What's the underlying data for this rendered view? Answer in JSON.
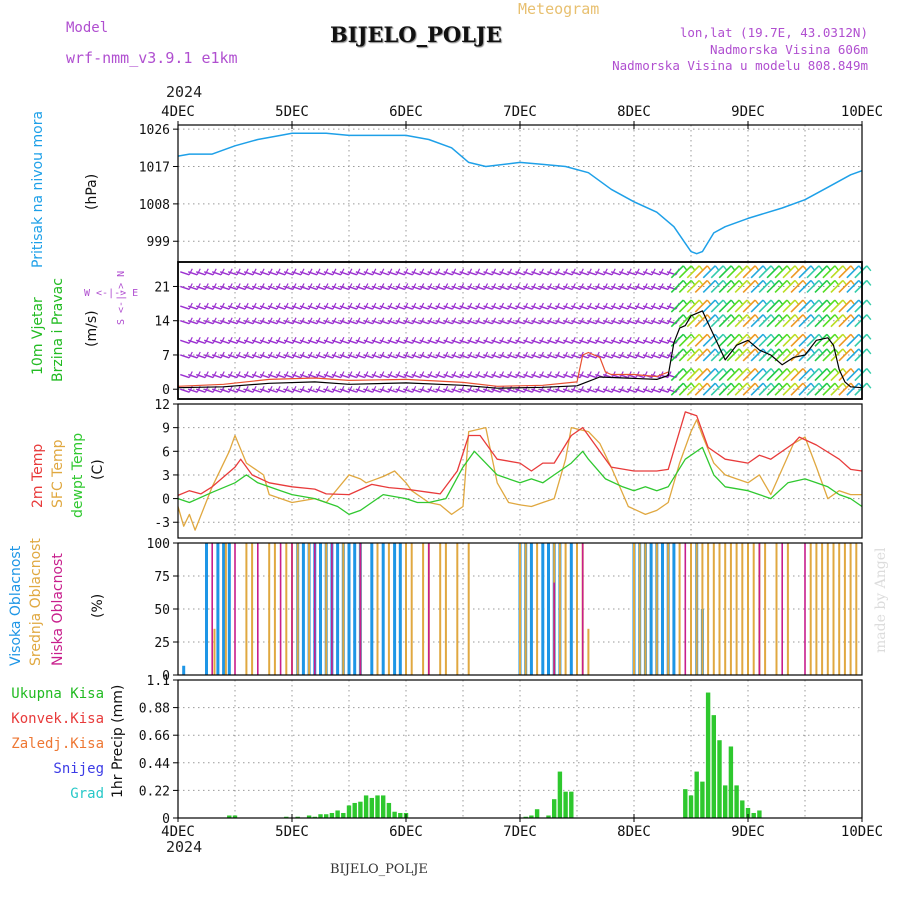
{
  "header": {
    "model_label": "Model",
    "model_name": "wrf-nmm_v3.9.1 e1km",
    "station": "BIJELO_POLJE",
    "meteogram": "Meteogram",
    "lonlat": "lon,lat (19.7E, 43.0312N)",
    "elevation": "Nadmorska Visina 606m",
    "model_elevation": "Nadmorska Visina u modelu 808.849m",
    "top_year": "2024",
    "bottom_year": "2024",
    "bottom_station": "BIJELO_POLJE",
    "watermark": "made by Angel"
  },
  "colors": {
    "pressure": "#1ea0e8",
    "wind_speed": "#000000",
    "wind_barb": "#9b30d0",
    "gust": "#e85030",
    "t2m": "#e83b3b",
    "tsfc": "#e0a840",
    "dewpt": "#30c830",
    "high_cloud": "#1e96e6",
    "mid_cloud": "#e0a840",
    "low_cloud": "#c81e8c",
    "precip": "#2ec82e",
    "snow": "#3c3ce6",
    "hail": "#28c8c8",
    "wind_label": "#22bb22",
    "precip_label_total": "#22bb22",
    "precip_label_conv": "#e83b3b",
    "precip_label_frz": "#ee7733"
  },
  "panels": {
    "pressure": {
      "labels": [
        "Pritisak na nivou mora"
      ],
      "unit": "(hPa)"
    },
    "wind": {
      "labels": [
        "10m Vjetar",
        "Brzina i Pravac"
      ],
      "unit": "(m/s)",
      "compass": "W <-|-> E",
      "compass2": "S <-|-> N"
    },
    "temp": {
      "labels": [
        "2m Temp",
        "SFC Temp",
        "dewpt Temp"
      ],
      "unit": "(C)"
    },
    "cloud": {
      "labels": [
        "Visoka Oblacnost",
        "Srednja Oblacnost",
        "Niska Oblacnost"
      ],
      "unit": "(%)"
    },
    "precip": {
      "labels": [
        "Ukupna Kisa",
        "Konvek.Kisa",
        "Zaledj.Kisa",
        "Snijeg",
        "Grad"
      ],
      "unit": "1hr Precip (mm)"
    }
  },
  "chart_data": [
    {
      "type": "line",
      "name": "pressure",
      "x_ticks": [
        "4DEC",
        "5DEC",
        "6DEC",
        "7DEC",
        "8DEC",
        "9DEC",
        "10DEC"
      ],
      "ylim": [
        994,
        1027
      ],
      "y_ticks": [
        999,
        1008,
        1017,
        1026
      ],
      "grid": true,
      "series": [
        {
          "name": "Pritisak na nivou mora",
          "x": [
            0,
            0.1,
            0.3,
            0.5,
            0.7,
            0.9,
            1.0,
            1.3,
            1.5,
            2.0,
            2.2,
            2.4,
            2.55,
            2.7,
            3.0,
            3.2,
            3.4,
            3.6,
            3.8,
            4.0,
            4.2,
            4.35,
            4.45,
            4.5,
            4.55,
            4.6,
            4.7,
            4.8,
            5.0,
            5.3,
            5.5,
            5.7,
            5.9,
            6.0
          ],
          "y": [
            1019.5,
            1020,
            1020,
            1022,
            1023.5,
            1024.5,
            1025,
            1025,
            1024.5,
            1024.5,
            1023.5,
            1021.5,
            1018,
            1017,
            1018,
            1017.5,
            1017,
            1015.5,
            1011.5,
            1008.5,
            1006,
            1002.5,
            998.5,
            996.5,
            996,
            996.5,
            1001,
            1002.5,
            1004.5,
            1007,
            1009,
            1012,
            1015,
            1016
          ]
        }
      ]
    },
    {
      "type": "line",
      "name": "wind",
      "ylim": [
        -2,
        26
      ],
      "y_ticks": [
        0,
        7,
        14,
        21
      ],
      "grid": true,
      "series": [
        {
          "name": "speed",
          "x": [
            0,
            0.4,
            0.8,
            1.2,
            1.5,
            2.0,
            2.5,
            2.8,
            3.2,
            3.5,
            3.7,
            4.0,
            4.2,
            4.3,
            4.35,
            4.4,
            4.45,
            4.5,
            4.6,
            4.7,
            4.8,
            4.9,
            5.0,
            5.1,
            5.2,
            5.3,
            5.4,
            5.5,
            5.6,
            5.7,
            5.75,
            5.8,
            5.85,
            5.9,
            6.0
          ],
          "y": [
            0.3,
            0.5,
            1.2,
            1.5,
            1.0,
            1.3,
            0.8,
            0.2,
            0.4,
            0.7,
            2.5,
            2.2,
            2.0,
            2.8,
            9.5,
            12.5,
            13.0,
            15.0,
            16.0,
            11.0,
            6.0,
            9.0,
            10.0,
            8.0,
            7.0,
            5.0,
            6.5,
            7.0,
            10.0,
            10.5,
            9.0,
            4.0,
            1.5,
            0.5,
            0.3
          ]
        },
        {
          "name": "gust",
          "x": [
            0,
            0.4,
            0.8,
            1.2,
            1.5,
            2.0,
            2.5,
            2.8,
            3.2,
            3.5,
            3.55,
            3.6,
            3.7,
            3.75,
            3.8,
            4.0,
            4.2,
            4.3
          ],
          "y": [
            0.6,
            1.0,
            2.0,
            2.3,
            1.8,
            2.0,
            1.4,
            0.6,
            0.8,
            1.5,
            7.0,
            7.5,
            6.5,
            3.5,
            3.0,
            3.0,
            2.6,
            3.5
          ]
        }
      ]
    },
    {
      "type": "line",
      "name": "temperature",
      "ylim": [
        -5,
        12
      ],
      "y_ticks": [
        -3,
        0,
        3,
        6,
        9,
        12
      ],
      "grid": true,
      "series": [
        {
          "name": "2m Temp",
          "x": [
            0,
            0.1,
            0.2,
            0.3,
            0.5,
            0.55,
            0.65,
            0.8,
            1.0,
            1.2,
            1.3,
            1.5,
            1.7,
            1.85,
            2.0,
            2.2,
            2.3,
            2.45,
            2.55,
            2.65,
            2.8,
            3.0,
            3.1,
            3.2,
            3.3,
            3.45,
            3.55,
            3.65,
            3.8,
            4.0,
            4.2,
            4.3,
            4.45,
            4.55,
            4.65,
            4.8,
            5.0,
            5.1,
            5.2,
            5.4,
            5.45,
            5.6,
            5.8,
            5.9,
            6.0
          ],
          "y": [
            0.4,
            1.0,
            0.6,
            1.5,
            4.0,
            5.0,
            3.0,
            2.0,
            1.5,
            1.2,
            0.6,
            0.5,
            1.8,
            1.4,
            1.2,
            0.8,
            0.6,
            3.5,
            8.0,
            8.0,
            5.0,
            4.5,
            3.5,
            4.5,
            4.5,
            8.0,
            9.0,
            7.0,
            4.0,
            3.5,
            3.5,
            3.7,
            11.0,
            10.5,
            6.5,
            5.0,
            4.5,
            5.5,
            5.0,
            7.0,
            7.8,
            6.8,
            5.0,
            3.7,
            3.5
          ]
        },
        {
          "name": "SFC Temp",
          "x": [
            0,
            0.05,
            0.1,
            0.15,
            0.3,
            0.45,
            0.5,
            0.6,
            0.75,
            0.8,
            1.0,
            1.2,
            1.3,
            1.5,
            1.6,
            1.65,
            1.8,
            1.9,
            2.0,
            2.05,
            2.2,
            2.3,
            2.4,
            2.5,
            2.55,
            2.7,
            2.8,
            2.9,
            3.0,
            3.1,
            3.2,
            3.3,
            3.4,
            3.45,
            3.6,
            3.7,
            3.8,
            3.95,
            4.1,
            4.2,
            4.3,
            4.4,
            4.5,
            4.55,
            4.6,
            4.7,
            4.8,
            4.9,
            5.0,
            5.1,
            5.2,
            5.4,
            5.5,
            5.6,
            5.7,
            5.8,
            5.9,
            6.0
          ],
          "y": [
            -1.0,
            -3.5,
            -2.0,
            -4.0,
            1.5,
            6.0,
            8.0,
            4.5,
            3.0,
            0.5,
            -0.5,
            0.0,
            -0.5,
            3.0,
            2.5,
            2.0,
            2.8,
            3.5,
            2.0,
            1.0,
            -0.5,
            -0.8,
            -2.0,
            -1.0,
            8.5,
            9.0,
            2.0,
            -0.5,
            -0.8,
            -1.0,
            -0.5,
            0.0,
            5.0,
            9.0,
            8.5,
            7.0,
            4.0,
            -1.0,
            -2.0,
            -1.5,
            -0.5,
            4.5,
            8.5,
            10.0,
            8.0,
            4.5,
            3.0,
            2.5,
            2.0,
            3.0,
            0.5,
            7.0,
            7.8,
            4.0,
            0.0,
            1.0,
            0.5,
            0.5
          ]
        },
        {
          "name": "dewpt Temp",
          "x": [
            0,
            0.1,
            0.3,
            0.5,
            0.6,
            0.7,
            0.9,
            1.0,
            1.2,
            1.4,
            1.5,
            1.6,
            1.7,
            1.8,
            2.0,
            2.1,
            2.2,
            2.35,
            2.5,
            2.6,
            2.8,
            3.0,
            3.1,
            3.2,
            3.3,
            3.45,
            3.55,
            3.6,
            3.75,
            3.9,
            4.0,
            4.1,
            4.2,
            4.3,
            4.45,
            4.6,
            4.7,
            4.8,
            5.0,
            5.1,
            5.2,
            5.35,
            5.5,
            5.6,
            5.7,
            5.8,
            5.9,
            6.0
          ],
          "y": [
            0.0,
            -0.5,
            0.8,
            2.0,
            3.0,
            2.0,
            1.0,
            0.5,
            0.0,
            -1.0,
            -2.0,
            -1.5,
            -0.5,
            0.5,
            0.0,
            -0.5,
            -0.5,
            0.0,
            4.0,
            6.0,
            3.0,
            2.0,
            2.5,
            2.0,
            3.0,
            4.5,
            6.0,
            5.0,
            2.5,
            1.5,
            1.0,
            1.5,
            1.0,
            1.5,
            5.0,
            6.5,
            3.0,
            1.5,
            1.0,
            0.5,
            0.0,
            2.0,
            2.5,
            2.0,
            1.5,
            0.5,
            0.0,
            -1.0
          ]
        }
      ]
    },
    {
      "type": "bar",
      "name": "cloud",
      "ylim": [
        0,
        100
      ],
      "y_ticks": [
        0,
        25,
        50,
        75,
        100
      ],
      "grid": true,
      "series": [
        {
          "name": "Visoka Oblacnost",
          "x": [
            0.05,
            0.25,
            0.35,
            0.4,
            0.45,
            1.05,
            1.1,
            1.15,
            1.2,
            1.25,
            1.3,
            1.35,
            1.4,
            1.45,
            1.5,
            1.55,
            1.6,
            1.7,
            1.8,
            1.9,
            1.95,
            3.0,
            3.05,
            3.1,
            3.2,
            3.25,
            3.3,
            3.35,
            3.45,
            4.0,
            4.05,
            4.1,
            4.15,
            4.2,
            4.25,
            4.3,
            4.35,
            4.55,
            4.6
          ],
          "values": [
            7,
            100,
            100,
            100,
            100,
            100,
            100,
            100,
            100,
            100,
            100,
            100,
            100,
            100,
            100,
            100,
            100,
            100,
            100,
            100,
            100,
            100,
            100,
            100,
            100,
            100,
            100,
            100,
            100,
            100,
            100,
            100,
            100,
            100,
            100,
            100,
            100,
            100,
            50
          ]
        },
        {
          "name": "Srednja Oblacnost",
          "x": [
            0.32,
            0.42,
            0.6,
            0.65,
            0.8,
            0.85,
            0.95,
            1.0,
            1.05,
            1.15,
            1.3,
            1.45,
            1.6,
            1.75,
            1.85,
            2.0,
            2.05,
            2.15,
            2.2,
            2.3,
            2.35,
            2.45,
            2.55,
            3.0,
            3.05,
            3.15,
            3.3,
            3.35,
            3.4,
            3.5,
            3.55,
            3.6,
            4.0,
            4.05,
            4.1,
            4.2,
            4.3,
            4.4,
            4.5,
            4.55,
            4.6,
            4.65,
            4.7,
            4.75,
            4.8,
            4.85,
            4.9,
            4.95,
            5.0,
            5.05,
            5.1,
            5.15,
            5.25,
            5.35,
            5.55,
            5.6,
            5.65,
            5.7,
            5.75,
            5.8,
            5.85,
            5.9,
            5.95
          ],
          "values": [
            35,
            100,
            100,
            100,
            100,
            100,
            100,
            100,
            100,
            100,
            100,
            100,
            100,
            100,
            100,
            100,
            100,
            100,
            100,
            100,
            100,
            100,
            100,
            100,
            100,
            100,
            100,
            100,
            100,
            100,
            100,
            35,
            100,
            100,
            100,
            100,
            100,
            100,
            100,
            100,
            100,
            100,
            100,
            100,
            100,
            100,
            100,
            100,
            100,
            100,
            100,
            100,
            100,
            100,
            100,
            100,
            100,
            100,
            100,
            100,
            100,
            100,
            100
          ]
        },
        {
          "name": "Niska Oblacnost",
          "x": [
            0.3,
            0.5,
            0.7,
            0.9,
            1.0,
            1.2,
            1.35,
            1.6,
            2.2,
            3.3,
            3.55,
            4.45,
            5.1,
            5.3,
            5.5
          ],
          "values": [
            100,
            100,
            100,
            100,
            100,
            100,
            100,
            100,
            100,
            70,
            100,
            100,
            100,
            100,
            100
          ]
        }
      ]
    },
    {
      "type": "bar",
      "name": "precip",
      "ylim": [
        0,
        1.1
      ],
      "y_ticks": [
        0.0,
        0.22,
        0.44,
        0.66,
        0.88,
        1.1
      ],
      "grid": true,
      "series": [
        {
          "name": "Ukupna Kisa",
          "x": [
            0.45,
            0.5,
            0.95,
            1.05,
            1.15,
            1.2,
            1.25,
            1.3,
            1.35,
            1.4,
            1.45,
            1.5,
            1.55,
            1.6,
            1.65,
            1.7,
            1.75,
            1.8,
            1.85,
            1.9,
            1.95,
            2.0,
            3.05,
            3.1,
            3.15,
            3.25,
            3.3,
            3.35,
            3.4,
            3.45,
            4.45,
            4.5,
            4.55,
            4.6,
            4.65,
            4.7,
            4.75,
            4.8,
            4.85,
            4.9,
            4.95,
            5.0,
            5.05,
            5.1
          ],
          "values": [
            0.02,
            0.02,
            0.01,
            0.01,
            0.02,
            0.01,
            0.03,
            0.03,
            0.04,
            0.06,
            0.04,
            0.1,
            0.12,
            0.13,
            0.18,
            0.16,
            0.18,
            0.18,
            0.12,
            0.05,
            0.04,
            0.04,
            0.01,
            0.02,
            0.07,
            0.02,
            0.15,
            0.37,
            0.21,
            0.21,
            0.23,
            0.18,
            0.37,
            0.29,
            1.0,
            0.82,
            0.62,
            0.26,
            0.57,
            0.26,
            0.14,
            0.08,
            0.04,
            0.06
          ]
        }
      ]
    }
  ]
}
